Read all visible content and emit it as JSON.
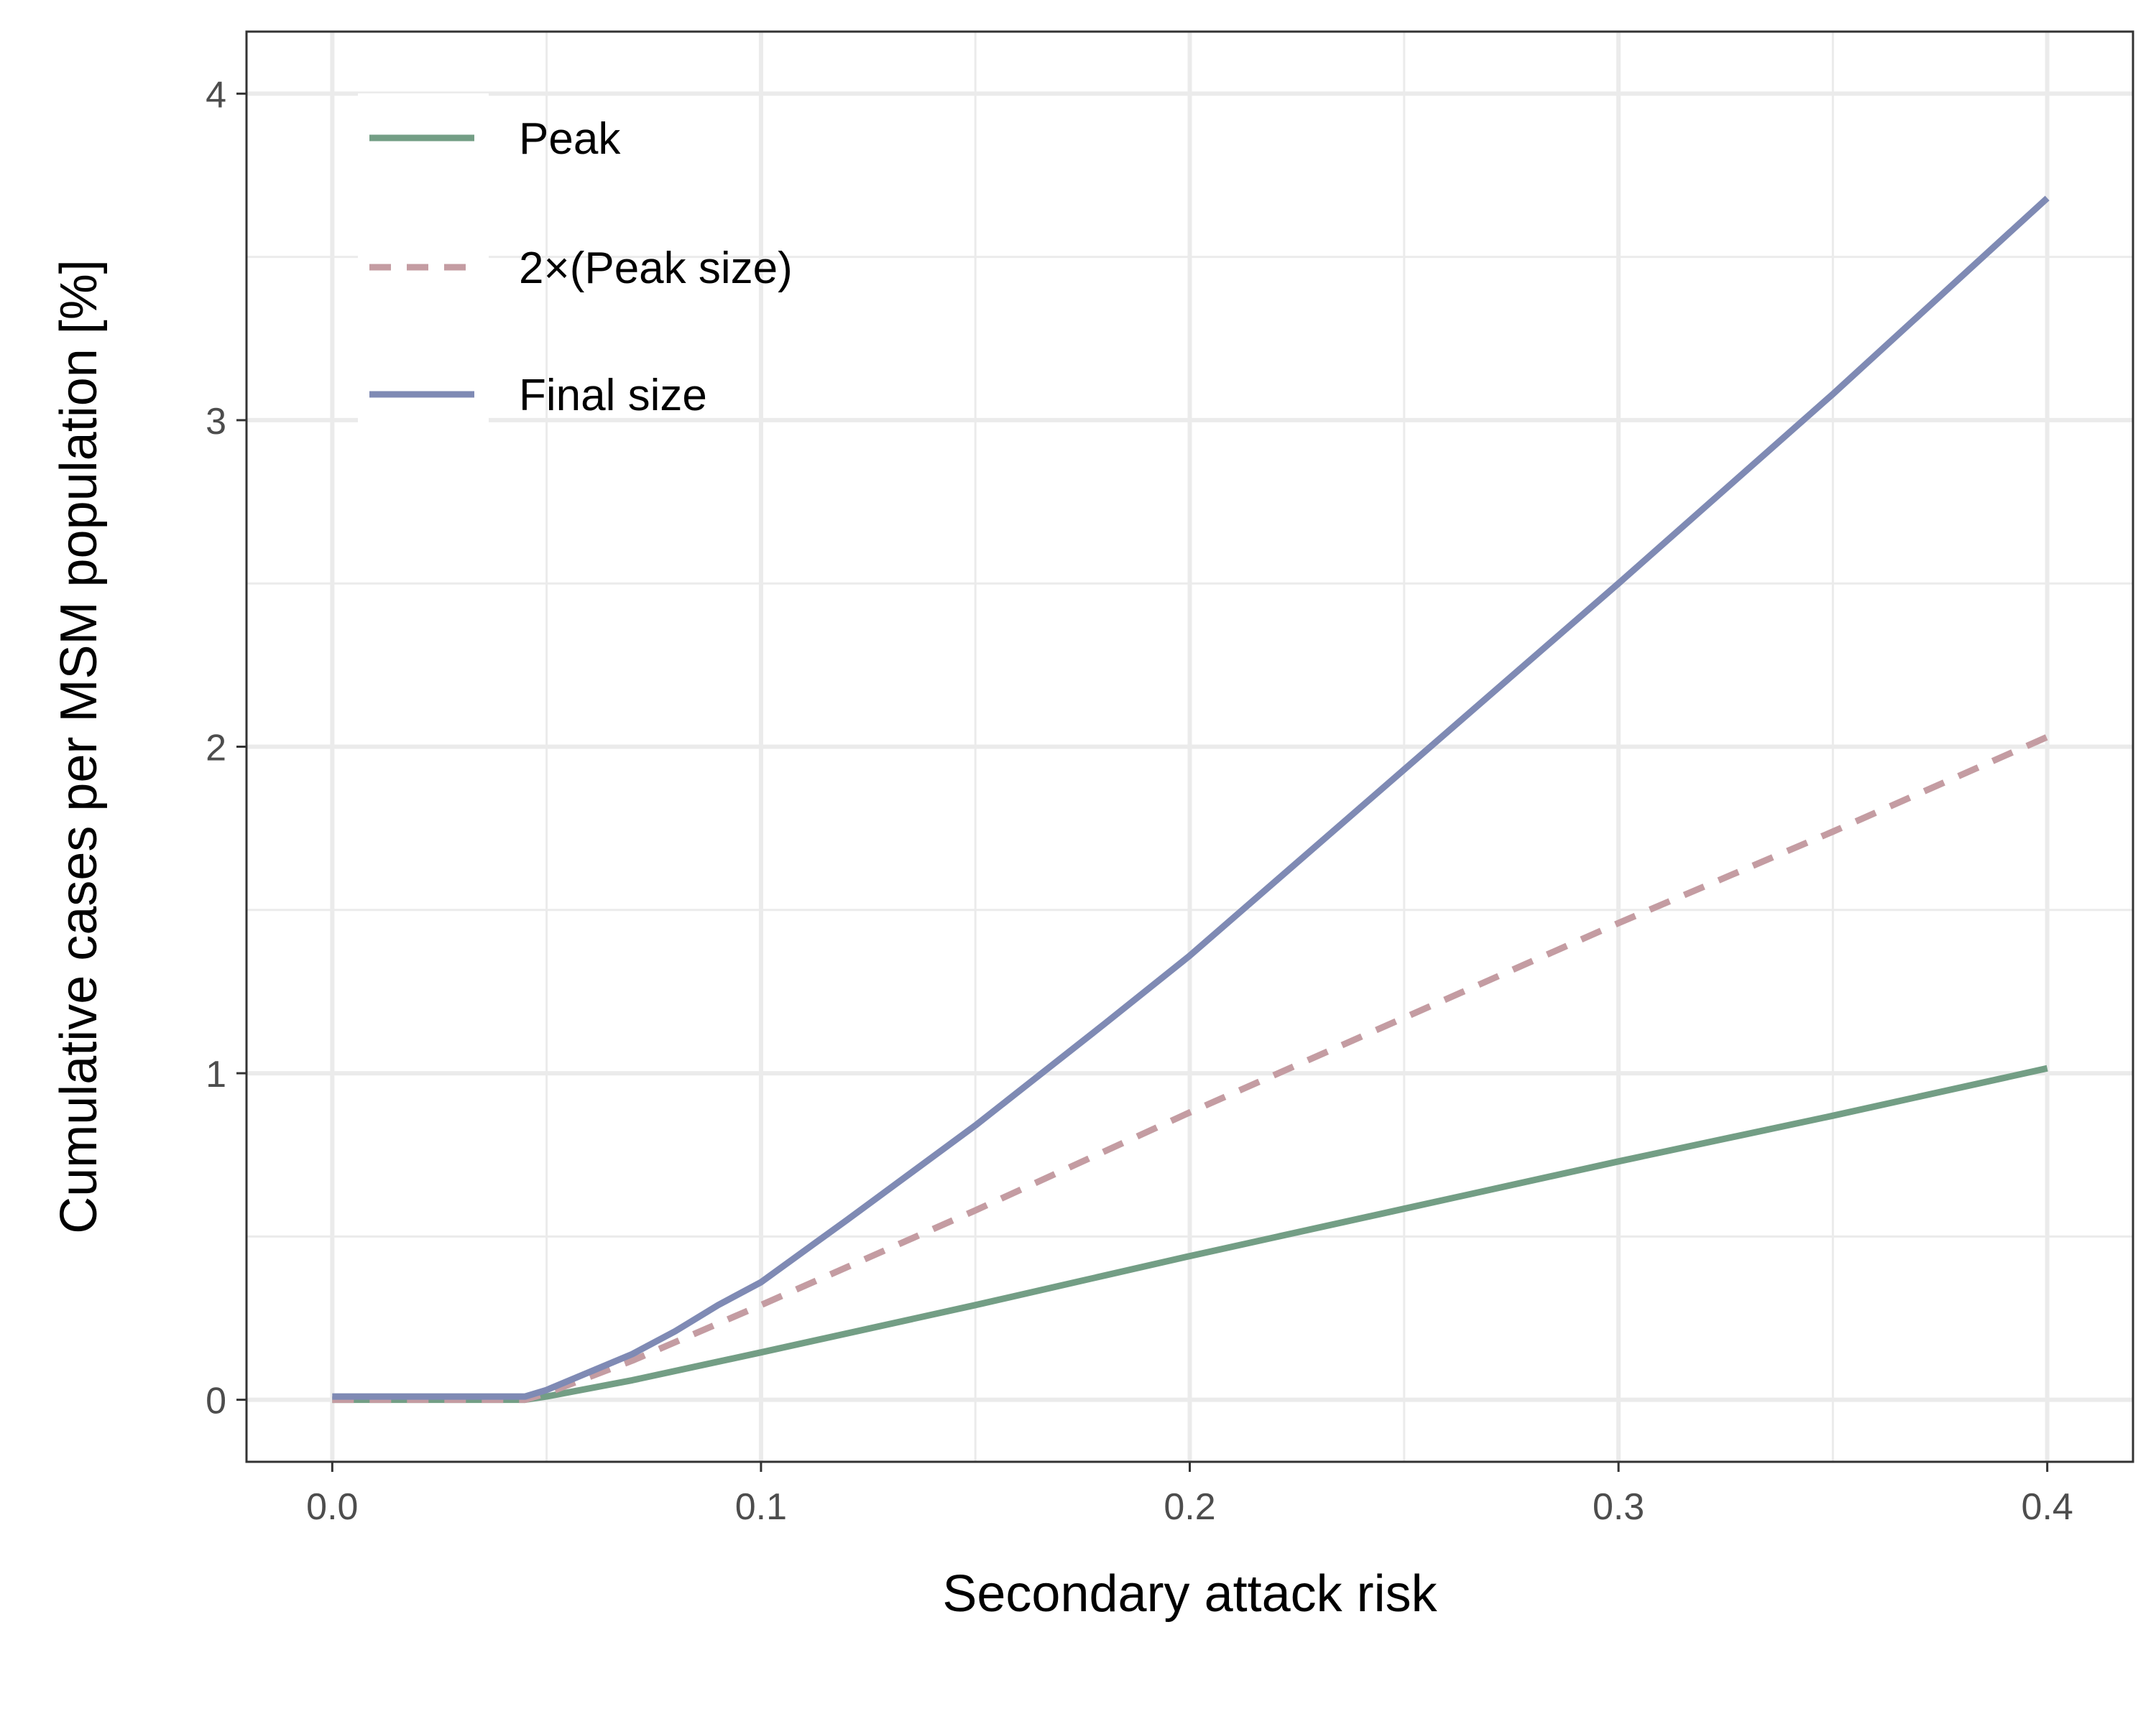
{
  "chart_data": {
    "type": "line",
    "xlabel": "Secondary attack risk",
    "ylabel": "Cumulative cases per MSM population [%]",
    "xlim": [
      -0.02,
      0.42
    ],
    "ylim": [
      -0.19,
      4.19
    ],
    "x_ticks": [
      0.0,
      0.1,
      0.2,
      0.3,
      0.4
    ],
    "x_tick_labels": [
      "0.0",
      "0.1",
      "0.2",
      "0.3",
      "0.4"
    ],
    "y_ticks": [
      0,
      1,
      2,
      3,
      4
    ],
    "y_tick_labels": [
      "0",
      "1",
      "2",
      "3",
      "4"
    ],
    "grid": true,
    "legend_position": "top-left",
    "series": [
      {
        "name": "Peak",
        "color": "#739e85",
        "dash": "solid",
        "x": [
          0.0,
          0.045,
          0.05,
          0.07,
          0.1,
          0.15,
          0.2,
          0.25,
          0.3,
          0.35,
          0.4
        ],
        "y": [
          0,
          0,
          0.01,
          0.06,
          0.145,
          0.29,
          0.44,
          0.585,
          0.73,
          0.87,
          1.015
        ]
      },
      {
        "name": "2×(Peak size)",
        "color": "#c49ca2",
        "dash": "dashed",
        "x": [
          0.0,
          0.045,
          0.05,
          0.07,
          0.1,
          0.15,
          0.2,
          0.25,
          0.3,
          0.35,
          0.4
        ],
        "y": [
          0,
          0,
          0.02,
          0.12,
          0.29,
          0.58,
          0.88,
          1.17,
          1.46,
          1.74,
          2.03
        ]
      },
      {
        "name": "Final size",
        "color": "#7f8ab4",
        "dash": "solid",
        "x": [
          0.0,
          0.045,
          0.05,
          0.07,
          0.08,
          0.09,
          0.1,
          0.12,
          0.15,
          0.18,
          0.2,
          0.25,
          0.3,
          0.35,
          0.4
        ],
        "y": [
          0.01,
          0.01,
          0.03,
          0.14,
          0.21,
          0.29,
          0.36,
          0.55,
          0.84,
          1.15,
          1.36,
          1.93,
          2.5,
          3.08,
          3.68
        ]
      }
    ]
  }
}
